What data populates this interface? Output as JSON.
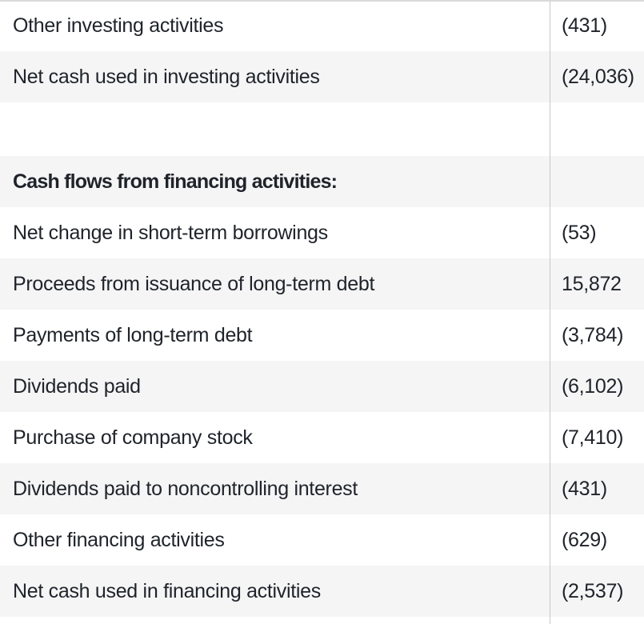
{
  "colors": {
    "row_alt_bg": "#f5f5f6",
    "divider": "#c5c8cb",
    "top_border": "#d8dadc",
    "text": "#20242a"
  },
  "table": {
    "rows": [
      {
        "type": "data",
        "label": "Other investing activities",
        "value": "(431)",
        "shaded": false
      },
      {
        "type": "data",
        "label": "Net cash used in investing activities",
        "value": "(24,036)",
        "shaded": true
      },
      {
        "type": "spacer",
        "label": "",
        "value": "",
        "shaded": false
      },
      {
        "type": "section_header",
        "label": "Cash flows from financing activities:",
        "value": "",
        "shaded": true
      },
      {
        "type": "data",
        "label": "Net change in short-term borrowings",
        "value": "(53)",
        "shaded": false
      },
      {
        "type": "data",
        "label": "Proceeds from issuance of long-term debt",
        "value": "15,872",
        "shaded": true
      },
      {
        "type": "data",
        "label": "Payments of long-term debt",
        "value": "(3,784)",
        "shaded": false
      },
      {
        "type": "data",
        "label": "Dividends paid",
        "value": "(6,102)",
        "shaded": true
      },
      {
        "type": "data",
        "label": "Purchase of company stock",
        "value": "(7,410)",
        "shaded": false
      },
      {
        "type": "data",
        "label": "Dividends paid to noncontrolling interest",
        "value": "(431)",
        "shaded": true
      },
      {
        "type": "data",
        "label": "Other financing activities",
        "value": "(629)",
        "shaded": false
      },
      {
        "type": "data",
        "label": "Net cash used in financing activities",
        "value": "(2,537)",
        "shaded": true
      }
    ]
  }
}
